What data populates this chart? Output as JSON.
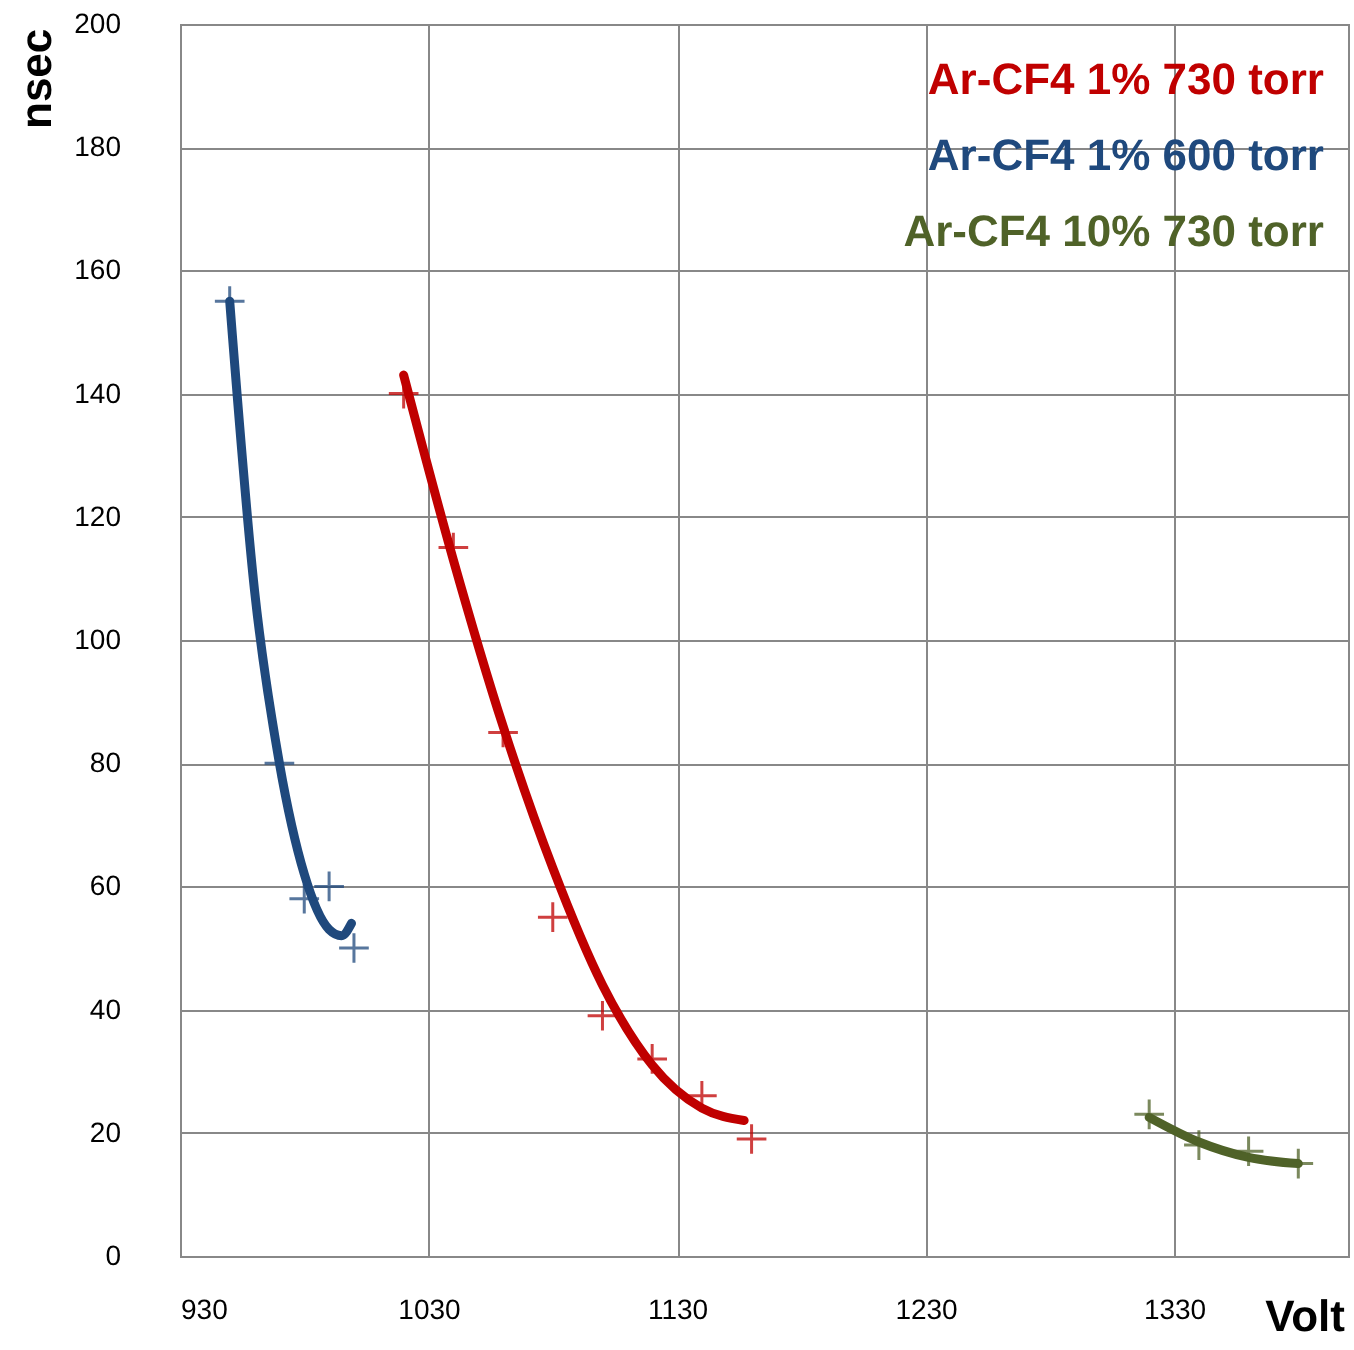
{
  "chart_data": {
    "type": "scatter",
    "xlabel": "Volt",
    "ylabel": "nsec",
    "xlim": [
      930,
      1400
    ],
    "xticks": [
      930,
      1030,
      1130,
      1230,
      1330
    ],
    "ylim": [
      0,
      200
    ],
    "yticks": [
      0,
      20,
      40,
      60,
      80,
      100,
      120,
      140,
      160,
      180,
      200
    ],
    "grid": true,
    "legend": "top right",
    "marker": "cross",
    "series": [
      {
        "name": "Ar-CF4 1% 730 torr",
        "color": "#c00000",
        "x": [
          1020,
          1040,
          1060,
          1080,
          1100,
          1120,
          1140,
          1160
        ],
        "values": [
          140,
          115,
          85,
          55,
          39,
          32,
          26,
          19
        ]
      },
      {
        "name": "Ar-CF4 1% 600 torr",
        "color": "#1f497d",
        "x": [
          950,
          970,
          980,
          990,
          1000
        ],
        "values": [
          155,
          80,
          58,
          60,
          50
        ]
      },
      {
        "name": "Ar-CF4 10% 730 torr",
        "color": "#4f6228",
        "x": [
          1320,
          1340,
          1360,
          1380
        ],
        "values": [
          23,
          18,
          17,
          15
        ]
      },
      {
        "color": "#c00000",
        "type": "line",
        "marker": "none",
        "x": [
          1020,
          1040,
          1060,
          1080,
          1100,
          1120,
          1140,
          1157
        ],
        "values": [
          143,
          113,
          86,
          63,
          44,
          31,
          24,
          22
        ]
      },
      {
        "color": "#1f497d",
        "type": "line",
        "marker": "none",
        "x": [
          950,
          960,
          970,
          980,
          990,
          995,
          999
        ],
        "values": [
          155,
          108,
          80,
          62,
          53,
          52,
          54
        ]
      },
      {
        "color": "#4f6228",
        "type": "line",
        "marker": "none",
        "x": [
          1320,
          1340,
          1360,
          1380
        ],
        "values": [
          22.5,
          18.5,
          16,
          15
        ]
      }
    ]
  }
}
